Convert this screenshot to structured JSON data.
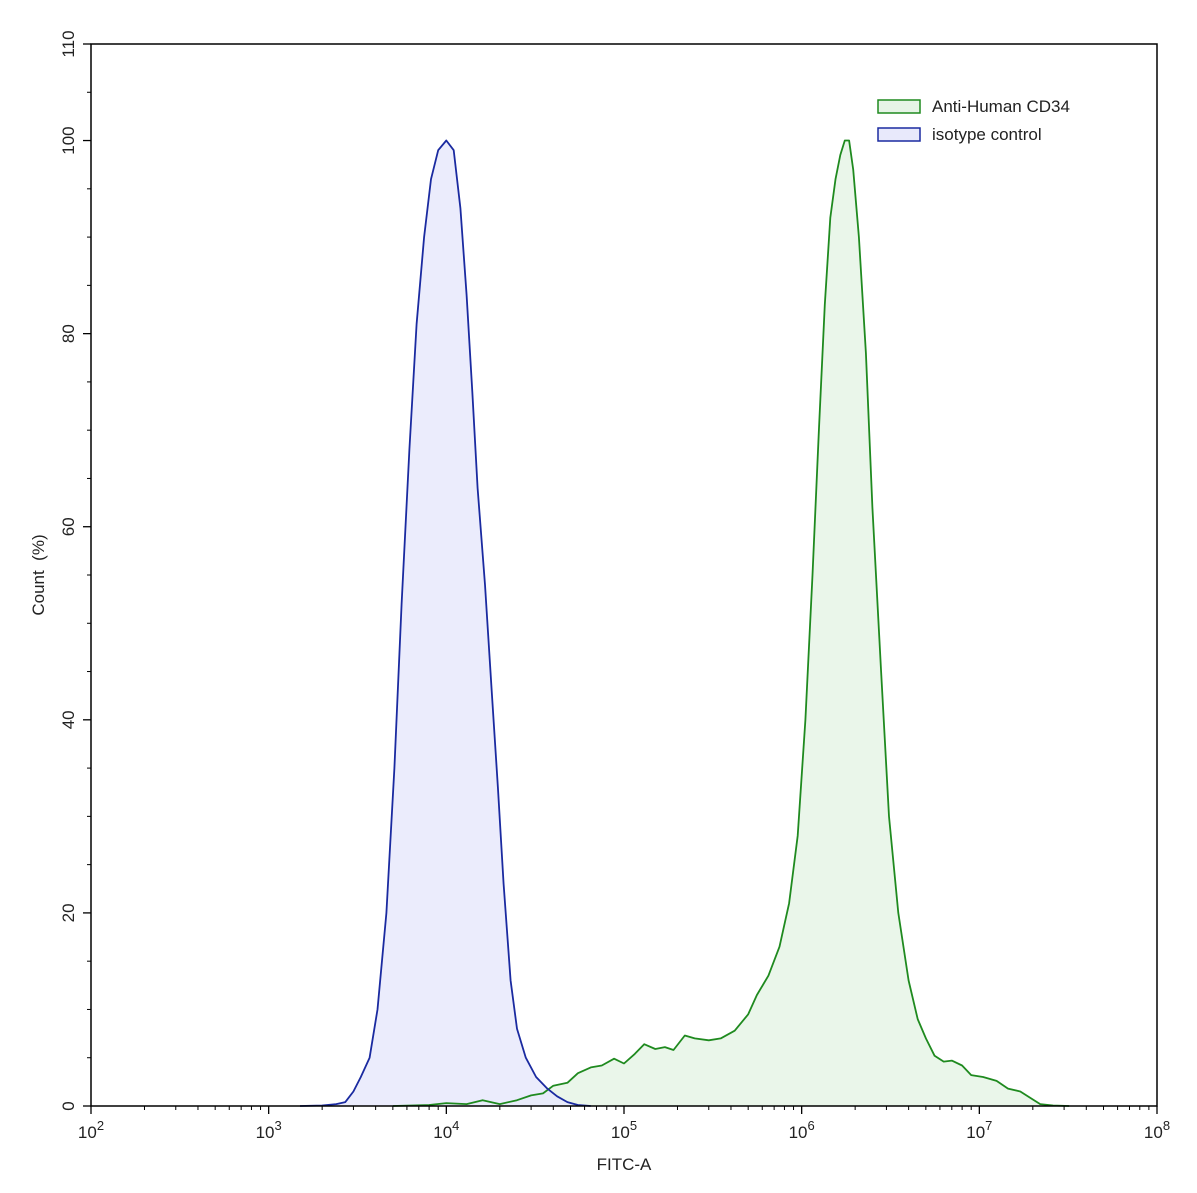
{
  "chart_data": {
    "type": "area",
    "xlabel": "FITC-A",
    "ylabel": "Count  (%)",
    "x_scale": "log",
    "xlim": [
      100,
      100000000
    ],
    "ylim": [
      0,
      110
    ],
    "x_ticks": [
      {
        "value": 100,
        "base": "10",
        "exp": "2"
      },
      {
        "value": 1000,
        "base": "10",
        "exp": "3"
      },
      {
        "value": 10000,
        "base": "10",
        "exp": "4"
      },
      {
        "value": 100000,
        "base": "10",
        "exp": "5"
      },
      {
        "value": 1000000,
        "base": "10",
        "exp": "6"
      },
      {
        "value": 10000000,
        "base": "10",
        "exp": "7"
      },
      {
        "value": 100000000,
        "base": "10",
        "exp": "8"
      }
    ],
    "y_ticks": [
      0,
      20,
      40,
      60,
      80,
      100,
      110
    ],
    "grid": false,
    "legend_position": "top-right",
    "series": [
      {
        "name": "Anti-Human CD34",
        "stroke": "#1f8a1f",
        "fill": "#e6f4e6",
        "points": [
          [
            5000,
            0
          ],
          [
            8000,
            0.1
          ],
          [
            10000,
            0.3
          ],
          [
            13000,
            0.2
          ],
          [
            16000,
            0.6
          ],
          [
            20000,
            0.2
          ],
          [
            25000,
            0.6
          ],
          [
            30000,
            1.1
          ],
          [
            35000,
            1.3
          ],
          [
            40000,
            2.1
          ],
          [
            48000,
            2.4
          ],
          [
            55000,
            3.4
          ],
          [
            65000,
            4.0
          ],
          [
            75000,
            4.2
          ],
          [
            88000,
            4.9
          ],
          [
            100000,
            4.4
          ],
          [
            115000,
            5.4
          ],
          [
            130000,
            6.4
          ],
          [
            150000,
            5.9
          ],
          [
            170000,
            6.1
          ],
          [
            190000,
            5.8
          ],
          [
            220000,
            7.3
          ],
          [
            250000,
            7.0
          ],
          [
            300000,
            6.8
          ],
          [
            350000,
            7.0
          ],
          [
            420000,
            7.8
          ],
          [
            500000,
            9.5
          ],
          [
            560000,
            11.5
          ],
          [
            650000,
            13.5
          ],
          [
            750000,
            16.5
          ],
          [
            850000,
            21
          ],
          [
            950000,
            28
          ],
          [
            1050000,
            40
          ],
          [
            1150000,
            55
          ],
          [
            1250000,
            70
          ],
          [
            1350000,
            83
          ],
          [
            1450000,
            92
          ],
          [
            1550000,
            96
          ],
          [
            1650000,
            98.5
          ],
          [
            1750000,
            100
          ],
          [
            1850000,
            100
          ],
          [
            1950000,
            97
          ],
          [
            2100000,
            90
          ],
          [
            2300000,
            78
          ],
          [
            2500000,
            62
          ],
          [
            2800000,
            45
          ],
          [
            3100000,
            30
          ],
          [
            3500000,
            20
          ],
          [
            4000000,
            13
          ],
          [
            4500000,
            9
          ],
          [
            5000000,
            7
          ],
          [
            5600000,
            5.2
          ],
          [
            6300000,
            4.6
          ],
          [
            7000000,
            4.7
          ],
          [
            8000000,
            4.2
          ],
          [
            9000000,
            3.2
          ],
          [
            10500000,
            3.0
          ],
          [
            12500000,
            2.6
          ],
          [
            14500000,
            1.8
          ],
          [
            17000000,
            1.5
          ],
          [
            19500000,
            0.8
          ],
          [
            22000000,
            0.2
          ],
          [
            26000000,
            0.05
          ],
          [
            32000000,
            0
          ]
        ]
      },
      {
        "name": "isotype control",
        "stroke": "#1a2aa0",
        "fill": "#e8e9fb",
        "points": [
          [
            1500,
            0
          ],
          [
            2000,
            0.05
          ],
          [
            2400,
            0.2
          ],
          [
            2700,
            0.4
          ],
          [
            3000,
            1.5
          ],
          [
            3300,
            3
          ],
          [
            3700,
            5
          ],
          [
            4100,
            10
          ],
          [
            4600,
            20
          ],
          [
            5100,
            35
          ],
          [
            5600,
            52
          ],
          [
            6200,
            68
          ],
          [
            6800,
            81
          ],
          [
            7500,
            90
          ],
          [
            8200,
            96
          ],
          [
            9000,
            99
          ],
          [
            10000,
            100
          ],
          [
            11000,
            99
          ],
          [
            12000,
            93
          ],
          [
            13000,
            84
          ],
          [
            14000,
            74
          ],
          [
            15000,
            64
          ],
          [
            16500,
            54
          ],
          [
            18000,
            43
          ],
          [
            19500,
            33
          ],
          [
            21000,
            23
          ],
          [
            23000,
            13
          ],
          [
            25000,
            8
          ],
          [
            28000,
            5
          ],
          [
            32000,
            3
          ],
          [
            37000,
            1.8
          ],
          [
            42000,
            1.0
          ],
          [
            48000,
            0.4
          ],
          [
            55000,
            0.1
          ],
          [
            65000,
            0
          ]
        ]
      }
    ]
  }
}
